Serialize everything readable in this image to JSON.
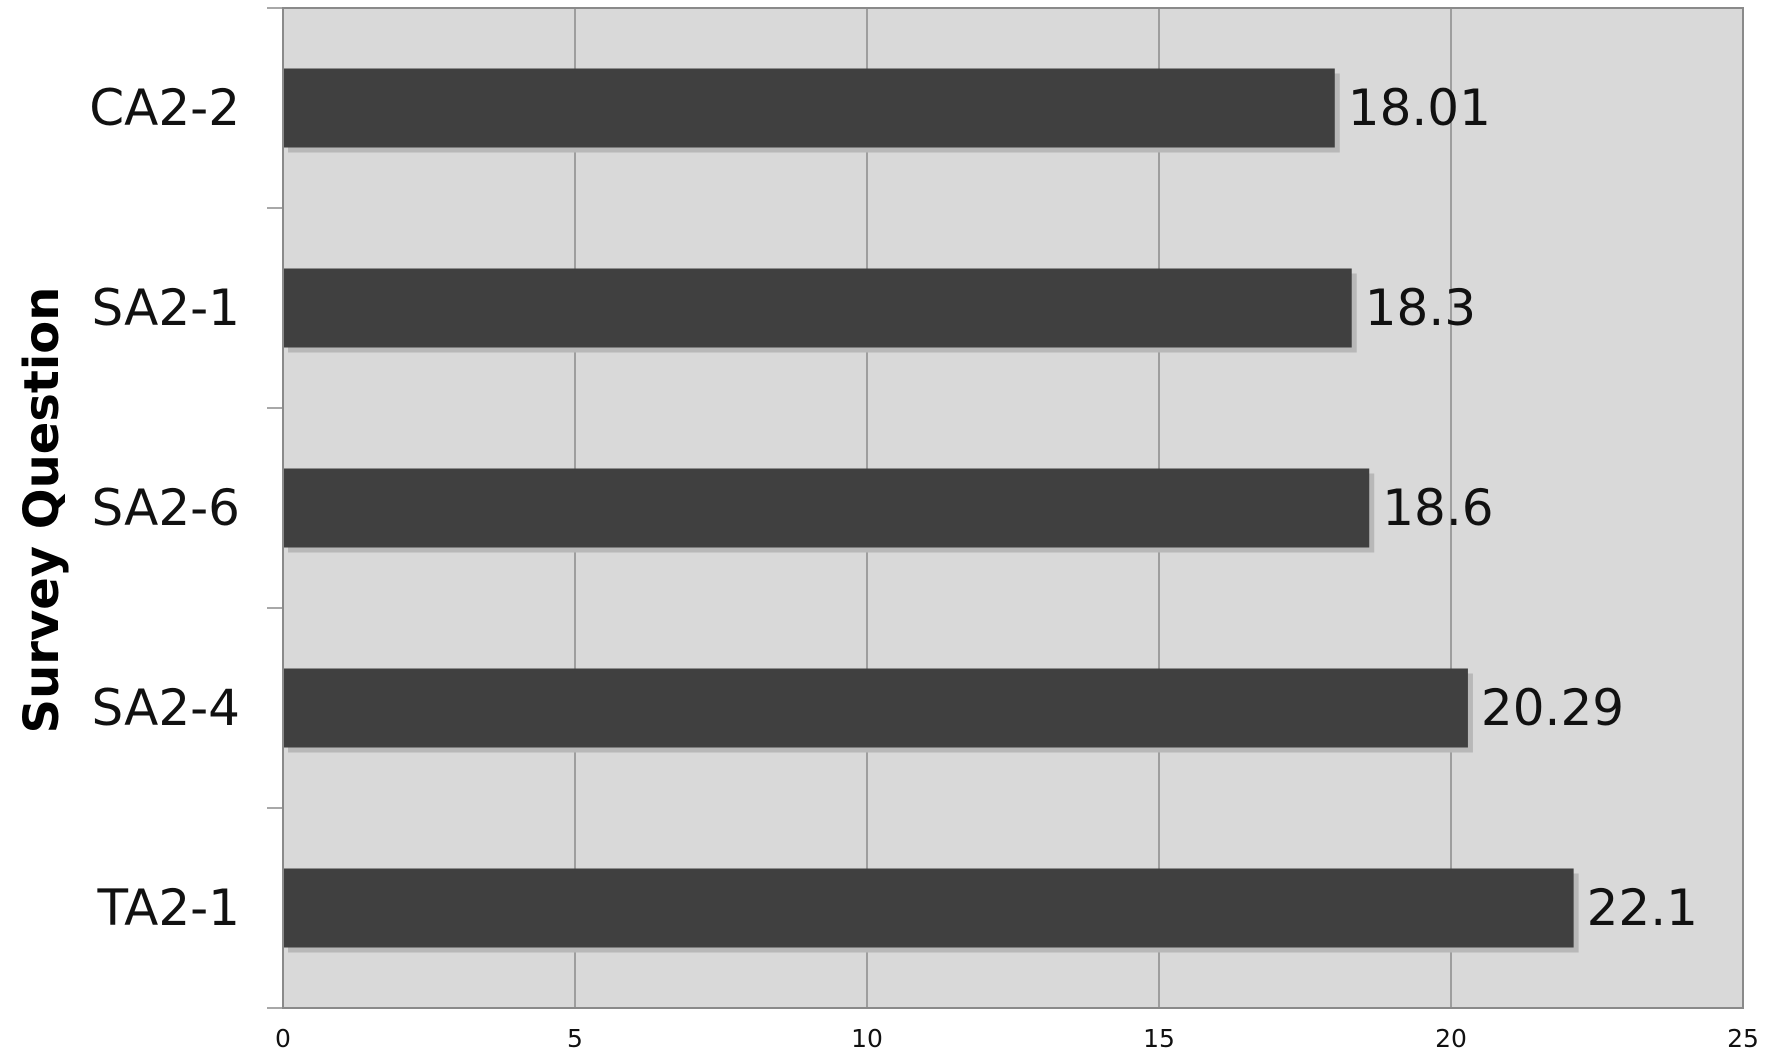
{
  "chart_data": {
    "type": "bar",
    "orientation": "horizontal",
    "title": "",
    "xlabel": "",
    "ylabel": "Survey Question",
    "categories": [
      "CA2-2",
      "SA2-1",
      "SA2-6",
      "SA2-4",
      "TA2-1"
    ],
    "values": [
      18.01,
      18.3,
      18.6,
      20.29,
      22.1
    ],
    "data_labels": [
      "18.01",
      "18.3",
      "18.6",
      "20.29",
      "22.1"
    ],
    "xlim": [
      0,
      25
    ],
    "xticks": [
      0,
      5,
      10,
      15,
      20,
      25
    ],
    "grid": true,
    "legend": "none",
    "colors": {
      "bar": "#404040",
      "bar_shadow": "#b8b8b8",
      "plot_background": "#d9d9d9",
      "gridline": "#8a8a8a",
      "axis": "#8a8a8a"
    }
  }
}
